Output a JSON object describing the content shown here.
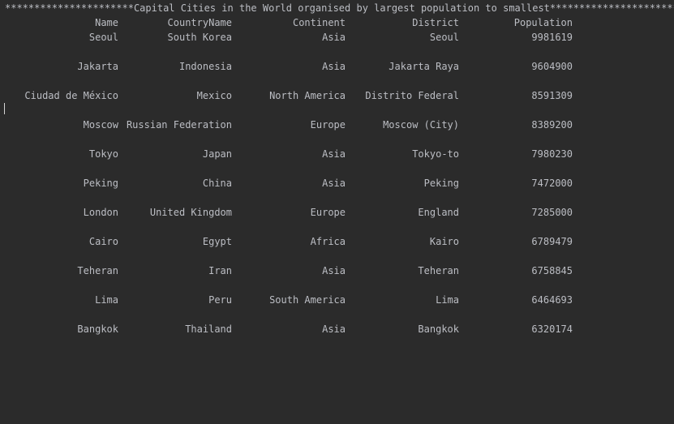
{
  "console": {
    "banner": "**********************Capital Cities in the World organised by largest population to smallest**********************",
    "headers": {
      "name": "Name",
      "country": "CountryName",
      "continent": "Continent",
      "district": "District",
      "population": "Population"
    },
    "rows": [
      {
        "name": "Seoul",
        "country": "South Korea",
        "continent": "Asia",
        "district": "Seoul",
        "population": "9981619"
      },
      {
        "name": "Jakarta",
        "country": "Indonesia",
        "continent": "Asia",
        "district": "Jakarta Raya",
        "population": "9604900"
      },
      {
        "name": "Ciudad de México",
        "country": "Mexico",
        "continent": "North America",
        "district": "Distrito Federal",
        "population": "8591309"
      },
      {
        "name": "Moscow",
        "country": "Russian Federation",
        "continent": "Europe",
        "district": "Moscow (City)",
        "population": "8389200"
      },
      {
        "name": "Tokyo",
        "country": "Japan",
        "continent": "Asia",
        "district": "Tokyo-to",
        "population": "7980230"
      },
      {
        "name": "Peking",
        "country": "China",
        "continent": "Asia",
        "district": "Peking",
        "population": "7472000"
      },
      {
        "name": "London",
        "country": "United Kingdom",
        "continent": "Europe",
        "district": "England",
        "population": "7285000"
      },
      {
        "name": "Cairo",
        "country": "Egypt",
        "continent": "Africa",
        "district": "Kairo",
        "population": "6789479"
      },
      {
        "name": "Teheran",
        "country": "Iran",
        "continent": "Asia",
        "district": "Teheran",
        "population": "6758845"
      },
      {
        "name": "Lima",
        "country": "Peru",
        "continent": "South America",
        "district": "Lima",
        "population": "6464693"
      },
      {
        "name": "Bangkok",
        "country": "Thailand",
        "continent": "Asia",
        "district": "Bangkok",
        "population": "6320174"
      }
    ]
  }
}
